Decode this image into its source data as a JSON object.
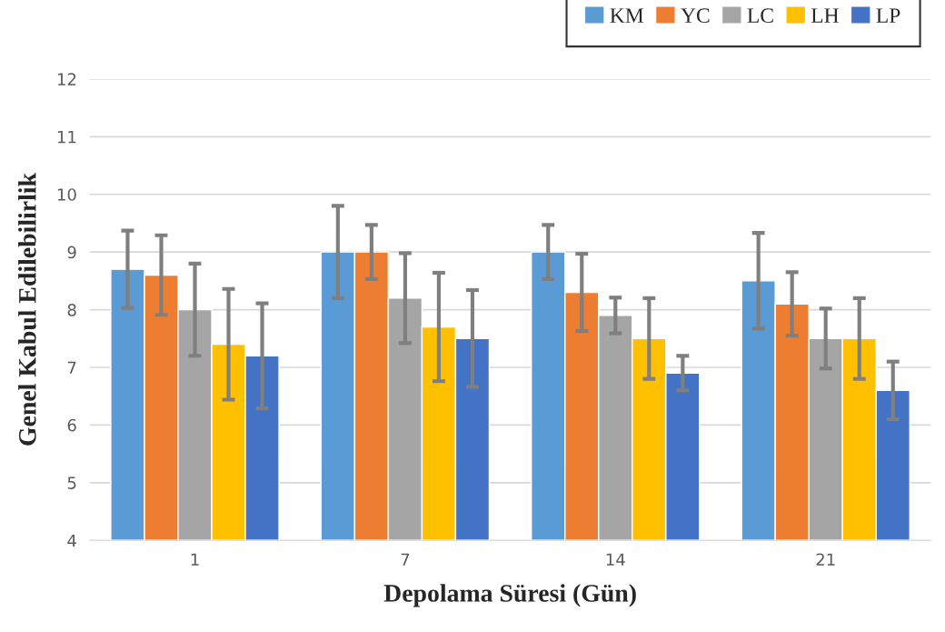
{
  "chart_data": {
    "type": "bar",
    "xlabel": "Depolama Süresi (Gün)",
    "ylabel": "Genel Kabul Edilebilirlik",
    "categories": [
      "1",
      "7",
      "14",
      "21"
    ],
    "series": [
      {
        "name": "KM",
        "color": "#5b9bd5",
        "values": [
          8.7,
          9.0,
          9.0,
          8.5
        ],
        "errors": [
          0.67,
          0.8,
          0.47,
          0.83
        ]
      },
      {
        "name": "YC",
        "color": "#ed7d31",
        "values": [
          8.6,
          9.0,
          8.3,
          8.1
        ],
        "errors": [
          0.69,
          0.47,
          0.67,
          0.55
        ]
      },
      {
        "name": "LC",
        "color": "#a5a5a5",
        "values": [
          8.0,
          8.2,
          7.9,
          7.5
        ],
        "errors": [
          0.8,
          0.78,
          0.31,
          0.52
        ]
      },
      {
        "name": "LH",
        "color": "#ffc000",
        "values": [
          7.4,
          7.7,
          7.5,
          7.5
        ],
        "errors": [
          0.96,
          0.94,
          0.7,
          0.7
        ]
      },
      {
        "name": "LP",
        "color": "#4472c4",
        "values": [
          7.2,
          7.5,
          6.9,
          6.6
        ],
        "errors": [
          0.91,
          0.84,
          0.3,
          0.5
        ]
      }
    ],
    "ylim": [
      4,
      12
    ],
    "yticks": [
      4,
      5,
      6,
      7,
      8,
      9,
      10,
      11,
      12
    ],
    "grid": "y",
    "legend": "top right"
  }
}
